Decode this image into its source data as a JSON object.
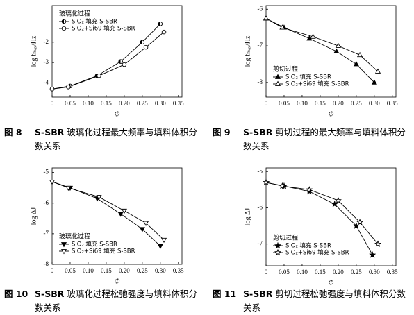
{
  "chart_data": [
    {
      "type": "line",
      "figure_label": "图 8",
      "caption_subject": "S-SBR",
      "caption": "玻璃化过程最大频率与填料体积分数关系",
      "x_label": "Φ",
      "y_label": "log fₘₐₓ/Hz",
      "legend_title": "玻璃化过程",
      "legend": "upper left",
      "xlim": [
        0,
        0.36
      ],
      "xticks": [
        0,
        0.05,
        {
          "value": 0.1,
          "label": "0.10"
        },
        0.15,
        {
          "value": 0.2,
          "label": "0.20"
        },
        0.25,
        {
          "value": 0.3,
          "label": "0.30"
        },
        0.35
      ],
      "ylim": [
        -4.7,
        -0.2
      ],
      "yticks": [
        -4,
        -3,
        -2
      ],
      "series": [
        {
          "name": "SiO₂ 填充 S-SBR",
          "color": "#000000",
          "marker": "circle",
          "marker_fill": "half",
          "x": [
            0,
            0.05,
            0.125,
            0.19,
            0.25,
            0.3
          ],
          "values": [
            -4.3,
            -4.15,
            -3.65,
            -2.95,
            -2.0,
            -1.1
          ]
        },
        {
          "name": "SiO₂+Si69 填充 S-SBR",
          "color": "#000000",
          "marker": "circle",
          "marker_fill": "white",
          "x": [
            0,
            0.045,
            0.13,
            0.2,
            0.26,
            0.31
          ],
          "values": [
            -4.3,
            -4.2,
            -3.65,
            -3.1,
            -2.25,
            -1.5
          ]
        }
      ]
    },
    {
      "type": "line",
      "figure_label": "图 9",
      "caption_subject": "S-SBR",
      "caption": "剪切过程的最大频率与填料体积分数关系",
      "x_label": "Φ",
      "y_label": "log fₘₐₓ/Hz",
      "legend_title": "剪切过程",
      "legend": "lower left",
      "xlim": [
        0,
        0.36
      ],
      "xticks": [
        0,
        0.05,
        {
          "value": 0.1,
          "label": "0.10"
        },
        0.15,
        {
          "value": 0.2,
          "label": "0.20"
        },
        0.25,
        {
          "value": 0.3,
          "label": "0.30"
        },
        0.35
      ],
      "ylim": [
        -8.4,
        -5.9
      ],
      "yticks": [
        -8,
        -7,
        -6
      ],
      "series": [
        {
          "name": "SiO₂ 填充 S-SBR",
          "color": "#000000",
          "marker": "triangle-up",
          "marker_fill": "black",
          "x": [
            0,
            0.05,
            0.12,
            0.195,
            0.25,
            0.3
          ],
          "values": [
            -6.25,
            -6.5,
            -6.8,
            -7.15,
            -7.5,
            -8.0
          ]
        },
        {
          "name": "SiO₂+Si69 填充 S-SBR",
          "color": "#000000",
          "marker": "triangle-up",
          "marker_fill": "white",
          "x": [
            0,
            0.045,
            0.13,
            0.2,
            0.26,
            0.31
          ],
          "values": [
            -6.25,
            -6.5,
            -6.75,
            -7.0,
            -7.25,
            -7.7
          ]
        }
      ]
    },
    {
      "type": "line",
      "figure_label": "图 10",
      "caption_subject": "S-SBR",
      "caption": "玻璃化过程松弛强度与填料体积分数关系",
      "x_label": "Φ",
      "y_label": "log ΔJ",
      "legend_title": "玻璃化过程",
      "legend": "lower left",
      "xlim": [
        0,
        0.36
      ],
      "xticks": [
        0,
        0.05,
        {
          "value": 0.1,
          "label": "0.10"
        },
        0.15,
        {
          "value": 0.2,
          "label": "0.20"
        },
        0.25,
        {
          "value": 0.3,
          "label": "0.30"
        },
        0.35
      ],
      "ylim": [
        -8,
        -4.85
      ],
      "yticks": [
        -8,
        -7,
        -6,
        -5
      ],
      "series": [
        {
          "name": "SiO₂ 填充 S-SBR",
          "color": "#000000",
          "marker": "triangle-down",
          "marker_fill": "black",
          "x": [
            0,
            0.05,
            0.125,
            0.19,
            0.25,
            0.3
          ],
          "values": [
            -5.3,
            -5.5,
            -5.85,
            -6.35,
            -6.85,
            -7.4
          ]
        },
        {
          "name": "SiO₂+Si69 填充 S-SBR",
          "color": "#000000",
          "marker": "triangle-down",
          "marker_fill": "white",
          "x": [
            0,
            0.045,
            0.13,
            0.2,
            0.26,
            0.31
          ],
          "values": [
            -5.3,
            -5.5,
            -5.8,
            -6.25,
            -6.65,
            -7.2
          ]
        }
      ]
    },
    {
      "type": "line",
      "figure_label": "图 11",
      "caption_subject": "S-SBR",
      "caption": "剪切过程松弛强度与填料体积分数关系",
      "x_label": "Φ",
      "y_label": "log ΔJ",
      "legend_title": "剪切过程",
      "legend": "lower left",
      "xlim": [
        0,
        0.36
      ],
      "xticks": [
        0,
        0.05,
        {
          "value": 0.1,
          "label": "0.10"
        },
        0.15,
        {
          "value": 0.2,
          "label": "0.20"
        },
        0.25,
        {
          "value": 0.3,
          "label": "0.30"
        },
        0.35
      ],
      "ylim": [
        -7.6,
        -4.9
      ],
      "yticks": [
        -7,
        -6,
        -5
      ],
      "series": [
        {
          "name": "SiO₂ 填充 S-SBR",
          "color": "#000000",
          "marker": "star",
          "marker_fill": "black",
          "x": [
            0,
            0.05,
            0.12,
            0.19,
            0.25,
            0.295
          ],
          "values": [
            -5.3,
            -5.4,
            -5.55,
            -5.9,
            -6.5,
            -7.3
          ]
        },
        {
          "name": "SiO₂+Si69 填充 S-SBR",
          "color": "#000000",
          "marker": "star",
          "marker_fill": "white",
          "x": [
            0,
            0.045,
            0.12,
            0.2,
            0.26,
            0.31
          ],
          "values": [
            -5.3,
            -5.4,
            -5.5,
            -5.8,
            -6.4,
            -7.0
          ]
        }
      ]
    }
  ]
}
